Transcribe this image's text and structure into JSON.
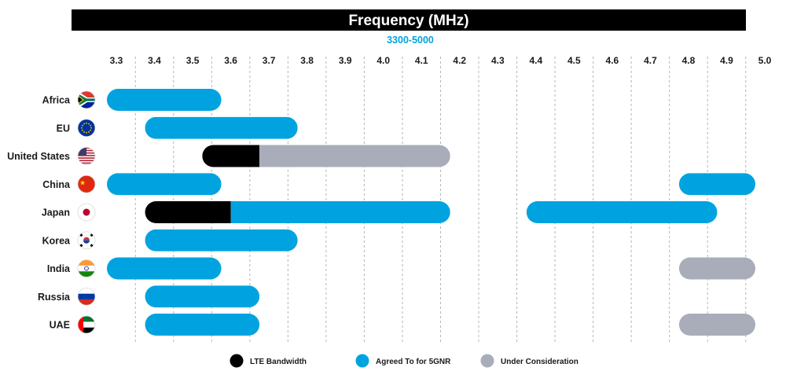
{
  "chart_data": {
    "type": "bar",
    "title": "Frequency (MHz)",
    "subtitle": "3300-5000",
    "x_ticks": [
      "3.3",
      "3.4",
      "3.5",
      "3.6",
      "3.7",
      "3.8",
      "3.9",
      "4.0",
      "4.1",
      "4.2",
      "4.3",
      "4.4",
      "4.5",
      "4.6",
      "4.7",
      "4.8",
      "4.9",
      "5.0"
    ],
    "xlim": [
      3.3,
      5.0
    ],
    "grid": "vertical dashed",
    "legend_position": "bottom",
    "categories": [
      "Africa",
      "EU",
      "United States",
      "China",
      "Japan",
      "Korea",
      "India",
      "Russia",
      "UAE"
    ],
    "flag_icons": [
      "south-africa-flag-icon",
      "eu-flag-icon",
      "us-flag-icon",
      "china-flag-icon",
      "japan-flag-icon",
      "korea-flag-icon",
      "india-flag-icon",
      "russia-flag-icon",
      "uae-flag-icon"
    ],
    "series": [
      {
        "name": "LTE Bandwidth",
        "color": "#000000",
        "ranges": [
          {
            "category": "United States",
            "start": 3.55,
            "end": 3.7
          },
          {
            "category": "Japan",
            "start": 3.4,
            "end": 3.625
          }
        ]
      },
      {
        "name": "Agreed To for 5GNR",
        "color": "#00a3e0",
        "ranges": [
          {
            "category": "Africa",
            "start": 3.3,
            "end": 3.6
          },
          {
            "category": "EU",
            "start": 3.4,
            "end": 3.8
          },
          {
            "category": "China",
            "start": 3.3,
            "end": 3.6
          },
          {
            "category": "China",
            "start": 4.8,
            "end": 5.0
          },
          {
            "category": "Japan",
            "start": 3.625,
            "end": 4.2
          },
          {
            "category": "Japan",
            "start": 4.4,
            "end": 4.9
          },
          {
            "category": "Korea",
            "start": 3.4,
            "end": 3.8
          },
          {
            "category": "India",
            "start": 3.3,
            "end": 3.6
          },
          {
            "category": "Russia",
            "start": 3.4,
            "end": 3.7
          },
          {
            "category": "UAE",
            "start": 3.4,
            "end": 3.7
          }
        ]
      },
      {
        "name": "Under Consideration",
        "color": "#a8adb9",
        "ranges": [
          {
            "category": "United States",
            "start": 3.7,
            "end": 4.2
          },
          {
            "category": "India",
            "start": 4.8,
            "end": 5.0
          },
          {
            "category": "UAE",
            "start": 4.8,
            "end": 5.0
          }
        ]
      }
    ],
    "colors": {
      "title_bar": "#000000",
      "title_text": "#ffffff",
      "subtitle": "#00a3e0",
      "grid": "#b5b5b5"
    }
  }
}
